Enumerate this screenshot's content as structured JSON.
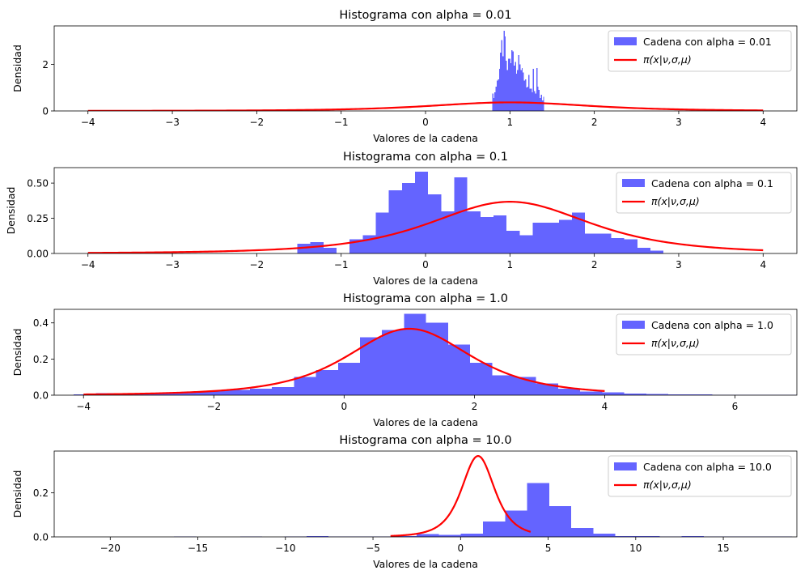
{
  "colors": {
    "histogram": "#6464ff",
    "pdf": "#ff0000"
  },
  "chart_data": [
    {
      "type": "bar",
      "title": "Histograma con alpha = 0.01",
      "xlabel": "Valores de la cadena",
      "ylabel": "Densidad",
      "xlim": [
        -4.4,
        4.4
      ],
      "ylim": [
        0,
        3.65
      ],
      "xticks": [
        -4,
        -3,
        -2,
        -1,
        0,
        1,
        2,
        3,
        4
      ],
      "yticks": [
        0,
        2
      ],
      "legend": {
        "position": "top-right",
        "hist_label": "Cadena con alpha = 0.01",
        "pdf_label": "π(x|ν,σ,μ)"
      },
      "hist": {
        "start": 0.79,
        "width": 0.0134,
        "density": [
          0.75,
          0.55,
          0.8,
          1.05,
          1.3,
          1.35,
          1.8,
          2.5,
          3.05,
          2.35,
          3.45,
          3.2,
          2.15,
          1.75,
          2.25,
          2.25,
          2.05,
          2.6,
          2.55,
          1.95,
          2.1,
          1.6,
          1.75,
          2.4,
          2.0,
          1.75,
          1.85,
          1.65,
          1.3,
          1.35,
          1.0,
          1.05,
          1.55,
          0.95,
          0.95,
          0.8,
          1.8,
          0.85,
          0.75,
          1.85,
          1.05,
          0.9,
          0.55,
          0.7,
          0.45,
          0.6
        ]
      },
      "pdf": {
        "x_range": [
          -4,
          4
        ],
        "nu": 3,
        "sigma": 1,
        "mu": 1
      }
    },
    {
      "type": "bar",
      "title": "Histograma con alpha = 0.1",
      "xlabel": "Valores de la cadena",
      "ylabel": "Densidad",
      "xlim": [
        -4.4,
        4.4
      ],
      "ylim": [
        0,
        0.61
      ],
      "xticks": [
        -4,
        -3,
        -2,
        -1,
        0,
        1,
        2,
        3,
        4
      ],
      "yticks": [
        0.0,
        0.25,
        0.5
      ],
      "ytick_labels": [
        "0.00",
        "0.25",
        "0.50"
      ],
      "legend": {
        "position": "top-right",
        "hist_label": "Cadena con alpha = 0.1",
        "pdf_label": "π(x|ν,σ,μ)"
      },
      "hist": {
        "start": -1.52,
        "width": 0.155,
        "density": [
          0.07,
          0.08,
          0.04,
          0.0,
          0.1,
          0.13,
          0.29,
          0.45,
          0.5,
          0.58,
          0.42,
          0.3,
          0.54,
          0.3,
          0.26,
          0.27,
          0.16,
          0.13,
          0.22,
          0.22,
          0.24,
          0.29,
          0.14,
          0.14,
          0.11,
          0.1,
          0.04,
          0.02
        ]
      },
      "pdf": {
        "x_range": [
          -4,
          4
        ],
        "nu": 3,
        "sigma": 1,
        "mu": 1
      }
    },
    {
      "type": "bar",
      "title": "Histograma con alpha = 1.0",
      "xlabel": "Valores de la cadena",
      "ylabel": "Densidad",
      "xlim": [
        -4.45,
        6.95
      ],
      "ylim": [
        0,
        0.475
      ],
      "xticks": [
        -4,
        -2,
        0,
        2,
        4,
        6
      ],
      "yticks": [
        0.0,
        0.2,
        0.4
      ],
      "ytick_labels": [
        "0.0",
        "0.2",
        "0.4"
      ],
      "legend": {
        "position": "top-right",
        "hist_label": "Cadena con alpha = 1.0",
        "pdf_label": "π(x|ν,σ,μ)"
      },
      "hist": {
        "start": -4.15,
        "width": 0.338,
        "density": [
          0.005,
          0.012,
          0.012,
          0.01,
          0.015,
          0.02,
          0.025,
          0.03,
          0.035,
          0.045,
          0.1,
          0.14,
          0.18,
          0.32,
          0.36,
          0.45,
          0.4,
          0.28,
          0.18,
          0.11,
          0.1,
          0.065,
          0.035,
          0.02,
          0.015,
          0.008,
          0.006,
          0.005,
          0.004,
          0.003,
          0.003,
          0.002,
          0.002,
          0.004
        ]
      },
      "pdf": {
        "x_range": [
          -4,
          4
        ],
        "nu": 3,
        "sigma": 1,
        "mu": 1
      }
    },
    {
      "type": "bar",
      "title": "Histograma con alpha = 10.0",
      "xlabel": "Valores de la cadena",
      "ylabel": "Densidad",
      "xlim": [
        -23.2,
        19.2
      ],
      "ylim": [
        0,
        0.39
      ],
      "xticks": [
        -20,
        -15,
        -10,
        -5,
        0,
        5,
        10,
        15
      ],
      "yticks": [
        0.0,
        0.2
      ],
      "ytick_labels": [
        "0.0",
        "0.2"
      ],
      "legend": {
        "position": "top-right",
        "hist_label": "Cadena con alpha = 10.0",
        "pdf_label": "π(x|ν,σ,μ)"
      },
      "hist": {
        "start": -21.4,
        "width": 1.26,
        "density": [
          0,
          0,
          0,
          0,
          0.002,
          0,
          0,
          0.002,
          0,
          0.001,
          0.003,
          0.002,
          0.002,
          0.001,
          0.004,
          0.012,
          0.01,
          0.015,
          0.07,
          0.12,
          0.245,
          0.14,
          0.04,
          0.015,
          0.003,
          0.004,
          0.002,
          0.004,
          0.002,
          0.001,
          0.002,
          0.001
        ]
      },
      "pdf": {
        "x_range": [
          -4,
          4
        ],
        "nu": 3,
        "sigma": 1,
        "mu": 1
      }
    }
  ]
}
